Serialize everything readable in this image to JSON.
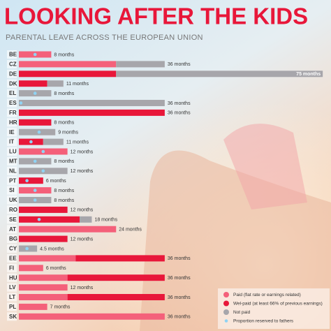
{
  "chart_data": {
    "type": "stacked-bar",
    "title": "LOOKING AFTER THE KIDS",
    "subtitle": "PARENTAL LEAVE ACROSS THE EUROPEAN UNION",
    "xlim": [
      0,
      76
    ],
    "categories": [
      "BE",
      "CZ",
      "DE",
      "DK",
      "EL",
      "ES",
      "FR",
      "HR",
      "IE",
      "IT",
      "LU",
      "MT",
      "NL",
      "PT",
      "SI",
      "UK",
      "RO",
      "SE",
      "AT",
      "BG",
      "CY",
      "EE",
      "FI",
      "HU",
      "LV",
      "LT",
      "PL",
      "SK"
    ],
    "series": [
      {
        "name": "Paid (flat rate or earnings related)",
        "color": "#f4607a",
        "values": [
          8,
          24,
          0,
          0,
          0,
          0,
          0,
          0,
          0,
          0,
          12,
          0,
          0,
          0,
          8,
          0,
          0,
          0,
          24,
          0,
          0,
          14,
          6,
          12,
          12,
          12,
          7,
          36
        ]
      },
      {
        "name": "Wel-paid (at least 66% of previous earnings)",
        "color": "#e8173a",
        "values": [
          0,
          0,
          24,
          7,
          0,
          0,
          36,
          8,
          0,
          6,
          0,
          0,
          0,
          6,
          0,
          0,
          12,
          15,
          0,
          12,
          0,
          22,
          0,
          24,
          0,
          24,
          0,
          0
        ]
      },
      {
        "name": "Not paid",
        "color": "#a7a6ab",
        "values": [
          0,
          12,
          51,
          4,
          8,
          36,
          0,
          0,
          9,
          5,
          0,
          8,
          12,
          0,
          0,
          8,
          0,
          3,
          0,
          0,
          4.5,
          0,
          0,
          0,
          0,
          0,
          0,
          0
        ]
      }
    ],
    "fathers": {
      "name": "Proportion reserved to fathers",
      "color": "#8fd3f4",
      "values": [
        4,
        null,
        null,
        null,
        4,
        0.5,
        null,
        null,
        5,
        3,
        6,
        4,
        6,
        2,
        4,
        4,
        null,
        5,
        null,
        null,
        2,
        null,
        null,
        null,
        null,
        null,
        null,
        null
      ]
    },
    "totals": [
      8,
      36,
      75,
      11,
      8,
      36,
      36,
      8,
      9,
      11,
      12,
      8,
      12,
      6,
      8,
      8,
      12,
      18,
      24,
      12,
      4.5,
      36,
      6,
      36,
      12,
      36,
      7,
      36
    ],
    "total_labels": [
      "8 months",
      "36 months",
      "75 months",
      "11 months",
      "8 months",
      "36 months",
      "36 months",
      "8 months",
      "9 months",
      "11 months",
      "12 months",
      "8 months",
      "12 months",
      "6 months",
      "8 months",
      "8 months",
      "12 months",
      "18 months",
      "24 months",
      "12 months",
      "4.5 months",
      "36 months",
      "6 months",
      "36 months",
      "12 months",
      "36 months",
      "7 months",
      "36 months"
    ]
  }
}
